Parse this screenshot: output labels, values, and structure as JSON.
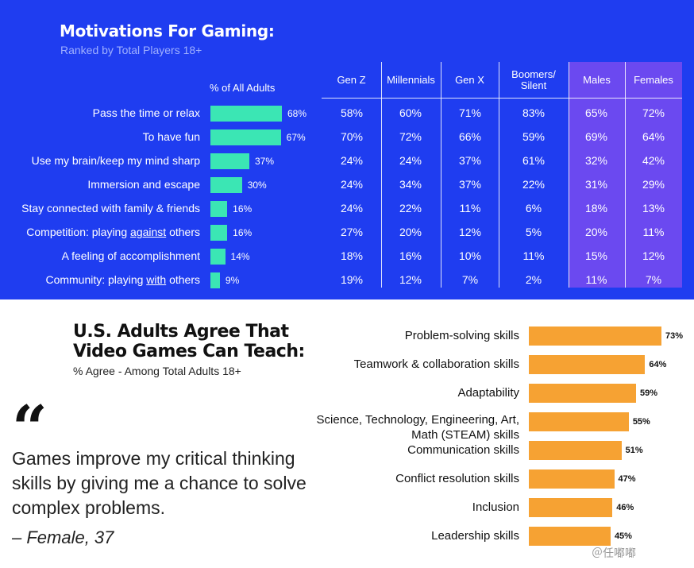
{
  "motivations": {
    "title": "Motivations For Gaming:",
    "subtitle": "Ranked by Total Players 18+",
    "pct_header": "% of All Adults",
    "columns": [
      "Gen Z",
      "Millennials",
      "Gen X",
      "Boomers/\nSilent",
      "Males",
      "Females"
    ],
    "rows": [
      {
        "label": "Pass the time or relax",
        "all_adults": "68%",
        "values": [
          "58%",
          "60%",
          "71%",
          "83%",
          "65%",
          "72%"
        ]
      },
      {
        "label": "To have fun",
        "all_adults": "67%",
        "values": [
          "70%",
          "72%",
          "66%",
          "59%",
          "69%",
          "64%"
        ]
      },
      {
        "label": "Use my brain/keep my mind sharp",
        "all_adults": "37%",
        "values": [
          "24%",
          "24%",
          "37%",
          "61%",
          "32%",
          "42%"
        ]
      },
      {
        "label": "Immersion and escape",
        "all_adults": "30%",
        "values": [
          "24%",
          "34%",
          "37%",
          "22%",
          "31%",
          "29%"
        ]
      },
      {
        "label": "Stay connected with family & friends",
        "all_adults": "16%",
        "values": [
          "24%",
          "22%",
          "11%",
          "6%",
          "18%",
          "13%"
        ]
      },
      {
        "label_pre": "Competition: playing ",
        "label_u": "against",
        "label_post": " others",
        "all_adults": "16%",
        "values": [
          "27%",
          "20%",
          "12%",
          "5%",
          "20%",
          "11%"
        ]
      },
      {
        "label": "A feeling of accomplishment",
        "all_adults": "14%",
        "values": [
          "18%",
          "16%",
          "10%",
          "11%",
          "15%",
          "12%"
        ]
      },
      {
        "label_pre": "Community: playing ",
        "label_u": "with",
        "label_post": " others",
        "all_adults": "9%",
        "values": [
          "19%",
          "12%",
          "7%",
          "2%",
          "11%",
          "7%"
        ]
      }
    ]
  },
  "teach": {
    "title_line1": "U.S. Adults Agree That",
    "title_line2": "Video Games Can Teach:",
    "subtitle": "% Agree - Among Total Adults 18+"
  },
  "quote": {
    "mark": "“",
    "text": "Games improve my critical thinking skills by giving me a chance to solve complex problems.",
    "attribution": "– Female, 37"
  },
  "chart_data": [
    {
      "type": "bar",
      "orientation": "horizontal",
      "title": "Motivations For Gaming:",
      "subtitle": "Ranked by Total Players 18+",
      "xlabel": "% of All Adults",
      "categories": [
        "Pass the time or relax",
        "To have fun",
        "Use my brain/keep my mind sharp",
        "Immersion and escape",
        "Stay connected with family & friends",
        "Competition: playing against others",
        "A feeling of accomplishment",
        "Community: playing with others"
      ],
      "values": [
        68,
        67,
        37,
        30,
        16,
        16,
        14,
        9
      ],
      "xlim": [
        0,
        100
      ],
      "color": "#3be6b4"
    },
    {
      "type": "bar",
      "orientation": "horizontal",
      "title": "U.S. Adults Agree That Video Games Can Teach:",
      "subtitle": "% Agree - Among Total Adults 18+",
      "categories": [
        "Problem-solving skills",
        "Teamwork & collaboration skills",
        "Adaptability",
        "Science, Technology, Engineering, Art, Math (STEAM) skills",
        "Communication skills",
        "Conflict resolution skills",
        "Inclusion",
        "Leadership skills"
      ],
      "labels": [
        "Problem-solving skills",
        "Teamwork & collaboration skills",
        "Adaptability",
        "Science, Technology, Engineering, Art,\nMath (STEAM) skills",
        "Communication skills",
        "Conflict resolution skills",
        "Inclusion",
        "Leadership skills"
      ],
      "values": [
        73,
        64,
        59,
        55,
        51,
        47,
        46,
        45
      ],
      "value_labels": [
        "73%",
        "64%",
        "59%",
        "55%",
        "51%",
        "47%",
        "46%",
        "45%"
      ],
      "xlim": [
        0,
        100
      ],
      "color": "#f6a233"
    }
  ],
  "colors": {
    "top_background": "#1f3df0",
    "gender_highlight": "#6b49f0",
    "motivation_bar": "#3be6b4",
    "teach_bar": "#f6a233"
  },
  "watermark": "＠任嘟嘟"
}
